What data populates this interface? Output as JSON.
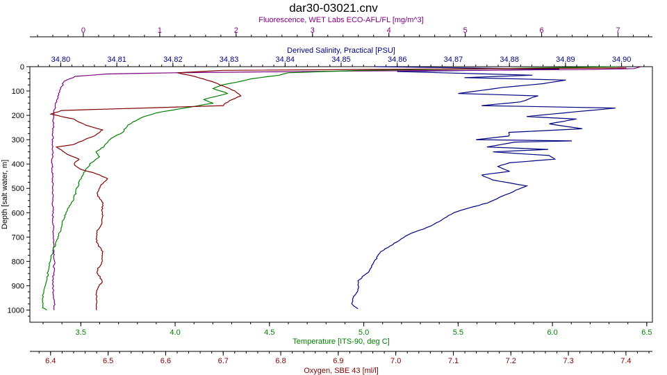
{
  "chart_data": {
    "type": "line",
    "title": "dar30-03021.cnv",
    "y_axis": {
      "label": "Depth [salt water, m]",
      "range": [
        0,
        1050
      ],
      "inverted": true,
      "ticks": [
        0,
        100,
        200,
        300,
        400,
        500,
        600,
        700,
        800,
        900,
        1000
      ],
      "color": "#000000"
    },
    "x_axes": [
      {
        "id": "fluorescence",
        "label": "Fluorescence, WET Labs ECO-AFL/FL [mg/m^3]",
        "position": "top-outer",
        "range": [
          -0.7,
          7.45
        ],
        "ticks": [
          0,
          1,
          2,
          3,
          4,
          5,
          6,
          7
        ],
        "tick_labels": [
          "0",
          "1",
          "2",
          "3",
          "4",
          "5",
          "6",
          "7"
        ],
        "minor_step": 0.2,
        "color": "#800080"
      },
      {
        "id": "salinity",
        "label": "Derived Salinity, Practical [PSU]",
        "position": "top-inner",
        "range": [
          34.7945,
          34.9055
        ],
        "ticks": [
          34.8,
          34.81,
          34.82,
          34.83,
          34.84,
          34.85,
          34.86,
          34.87,
          34.88,
          34.89,
          34.9
        ],
        "tick_labels": [
          "34.80",
          "34.81",
          "34.82",
          "34.83",
          "34.84",
          "34.85",
          "34.86",
          "34.87",
          "34.88",
          "34.89",
          "34.90"
        ],
        "minor_step": 0.002,
        "color": "#000080"
      },
      {
        "id": "temperature",
        "label": "Temperature [ITS-90, deg C]",
        "position": "bottom-inner",
        "range": [
          3.23,
          6.53
        ],
        "ticks": [
          3.5,
          4.0,
          4.5,
          5.0,
          5.5,
          6.0,
          6.5
        ],
        "tick_labels": [
          "3.5",
          "4.0",
          "4.5",
          "5.0",
          "5.5",
          "6.0",
          "6.5"
        ],
        "minor_step": 0.1,
        "color": "#008000"
      },
      {
        "id": "oxygen",
        "label": "Oxygen, SBE 43 [ml/l]",
        "position": "bottom-outer",
        "range": [
          6.364,
          7.446
        ],
        "ticks": [
          6.4,
          6.5,
          6.6,
          6.7,
          6.8,
          6.9,
          7.0,
          7.1,
          7.2,
          7.3,
          7.4
        ],
        "tick_labels": [
          "6.4",
          "6.5",
          "6.6",
          "6.7",
          "6.8",
          "6.9",
          "7.0",
          "7.1",
          "7.2",
          "7.3",
          "7.4"
        ],
        "minor_step": 0.02,
        "color": "#800000"
      }
    ],
    "series": [
      {
        "axis": "salinity",
        "color": "#000080",
        "points": [
          [
            34.856,
            0
          ],
          [
            34.889,
            10
          ],
          [
            34.86,
            20
          ],
          [
            34.884,
            35
          ],
          [
            34.872,
            45
          ],
          [
            34.89,
            55
          ],
          [
            34.886,
            70
          ],
          [
            34.879,
            85
          ],
          [
            34.871,
            110
          ],
          [
            34.885,
            120
          ],
          [
            34.882,
            145
          ],
          [
            34.875,
            160
          ],
          [
            34.899,
            170
          ],
          [
            34.892,
            185
          ],
          [
            34.883,
            205
          ],
          [
            34.892,
            215
          ],
          [
            34.887,
            235
          ],
          [
            34.893,
            255
          ],
          [
            34.88,
            270
          ],
          [
            34.88,
            285
          ],
          [
            34.874,
            300
          ],
          [
            34.891,
            305
          ],
          [
            34.881,
            310
          ],
          [
            34.876,
            330
          ],
          [
            34.887,
            340
          ],
          [
            34.877,
            350
          ],
          [
            34.887,
            365
          ],
          [
            34.888,
            380
          ],
          [
            34.88,
            395
          ],
          [
            34.878,
            410
          ],
          [
            34.88,
            430
          ],
          [
            34.875,
            445
          ],
          [
            34.877,
            465
          ],
          [
            34.88,
            478
          ],
          [
            34.883,
            490
          ],
          [
            34.88,
            520
          ],
          [
            34.876,
            560
          ],
          [
            34.873,
            580
          ],
          [
            34.87,
            600
          ],
          [
            34.868,
            630
          ],
          [
            34.866,
            655
          ],
          [
            34.862,
            690
          ],
          [
            34.86,
            720
          ],
          [
            34.857,
            760
          ],
          [
            34.856,
            800
          ],
          [
            34.855,
            840
          ],
          [
            34.853,
            880
          ],
          [
            34.853,
            920
          ],
          [
            34.852,
            950
          ],
          [
            34.852,
            980
          ],
          [
            34.853,
            995
          ]
        ]
      },
      {
        "axis": "fluorescence",
        "color": "#800080",
        "points": [
          [
            7.3,
            0
          ],
          [
            7.2,
            8
          ],
          [
            6.5,
            12
          ],
          [
            3.5,
            18
          ],
          [
            1.2,
            25
          ],
          [
            0.3,
            30
          ],
          [
            -0.1,
            40
          ],
          [
            -0.25,
            60
          ],
          [
            -0.28,
            80
          ],
          [
            -0.32,
            110
          ],
          [
            -0.36,
            150
          ],
          [
            -0.38,
            180
          ],
          [
            -0.39,
            220
          ],
          [
            -0.4,
            300
          ],
          [
            -0.41,
            400
          ],
          [
            -0.4,
            500
          ],
          [
            -0.4,
            600
          ],
          [
            -0.39,
            700
          ],
          [
            -0.38,
            800
          ],
          [
            -0.4,
            900
          ],
          [
            -0.38,
            960
          ],
          [
            -0.38,
            1000
          ]
        ]
      },
      {
        "axis": "temperature",
        "color": "#008000",
        "points": [
          [
            6.35,
            0
          ],
          [
            5.7,
            8
          ],
          [
            5.0,
            15
          ],
          [
            4.6,
            25
          ],
          [
            4.55,
            35
          ],
          [
            4.4,
            50
          ],
          [
            4.35,
            60
          ],
          [
            4.25,
            75
          ],
          [
            4.2,
            90
          ],
          [
            4.28,
            110
          ],
          [
            4.15,
            135
          ],
          [
            4.2,
            150
          ],
          [
            4.05,
            170
          ],
          [
            3.9,
            190
          ],
          [
            3.82,
            210
          ],
          [
            3.75,
            240
          ],
          [
            3.72,
            270
          ],
          [
            3.65,
            300
          ],
          [
            3.62,
            330
          ],
          [
            3.58,
            350
          ],
          [
            3.6,
            370
          ],
          [
            3.55,
            400
          ],
          [
            3.52,
            430
          ],
          [
            3.5,
            460
          ],
          [
            3.48,
            500
          ],
          [
            3.46,
            550
          ],
          [
            3.42,
            600
          ],
          [
            3.4,
            650
          ],
          [
            3.38,
            700
          ],
          [
            3.35,
            760
          ],
          [
            3.33,
            820
          ],
          [
            3.32,
            880
          ],
          [
            3.3,
            940
          ],
          [
            3.3,
            990
          ],
          [
            3.32,
            1000
          ]
        ]
      },
      {
        "axis": "oxygen",
        "color": "#800000",
        "points": [
          [
            7.4,
            5
          ],
          [
            6.7,
            15
          ],
          [
            6.62,
            25
          ],
          [
            6.65,
            40
          ],
          [
            6.68,
            60
          ],
          [
            6.7,
            80
          ],
          [
            6.72,
            100
          ],
          [
            6.73,
            120
          ],
          [
            6.71,
            140
          ],
          [
            6.7,
            160
          ],
          [
            6.42,
            180
          ],
          [
            6.4,
            195
          ],
          [
            6.44,
            215
          ],
          [
            6.46,
            240
          ],
          [
            6.49,
            260
          ],
          [
            6.48,
            280
          ],
          [
            6.46,
            300
          ],
          [
            6.44,
            320
          ],
          [
            6.41,
            330
          ],
          [
            6.43,
            360
          ],
          [
            6.45,
            380
          ],
          [
            6.44,
            400
          ],
          [
            6.45,
            420
          ],
          [
            6.48,
            440
          ],
          [
            6.5,
            460
          ],
          [
            6.49,
            480
          ],
          [
            6.48,
            520
          ],
          [
            6.49,
            560
          ],
          [
            6.49,
            600
          ],
          [
            6.49,
            640
          ],
          [
            6.48,
            680
          ],
          [
            6.48,
            720
          ],
          [
            6.49,
            760
          ],
          [
            6.49,
            800
          ],
          [
            6.48,
            840
          ],
          [
            6.49,
            880
          ],
          [
            6.48,
            920
          ],
          [
            6.48,
            960
          ],
          [
            6.48,
            1000
          ]
        ]
      }
    ],
    "grid": false,
    "legend": "none"
  }
}
